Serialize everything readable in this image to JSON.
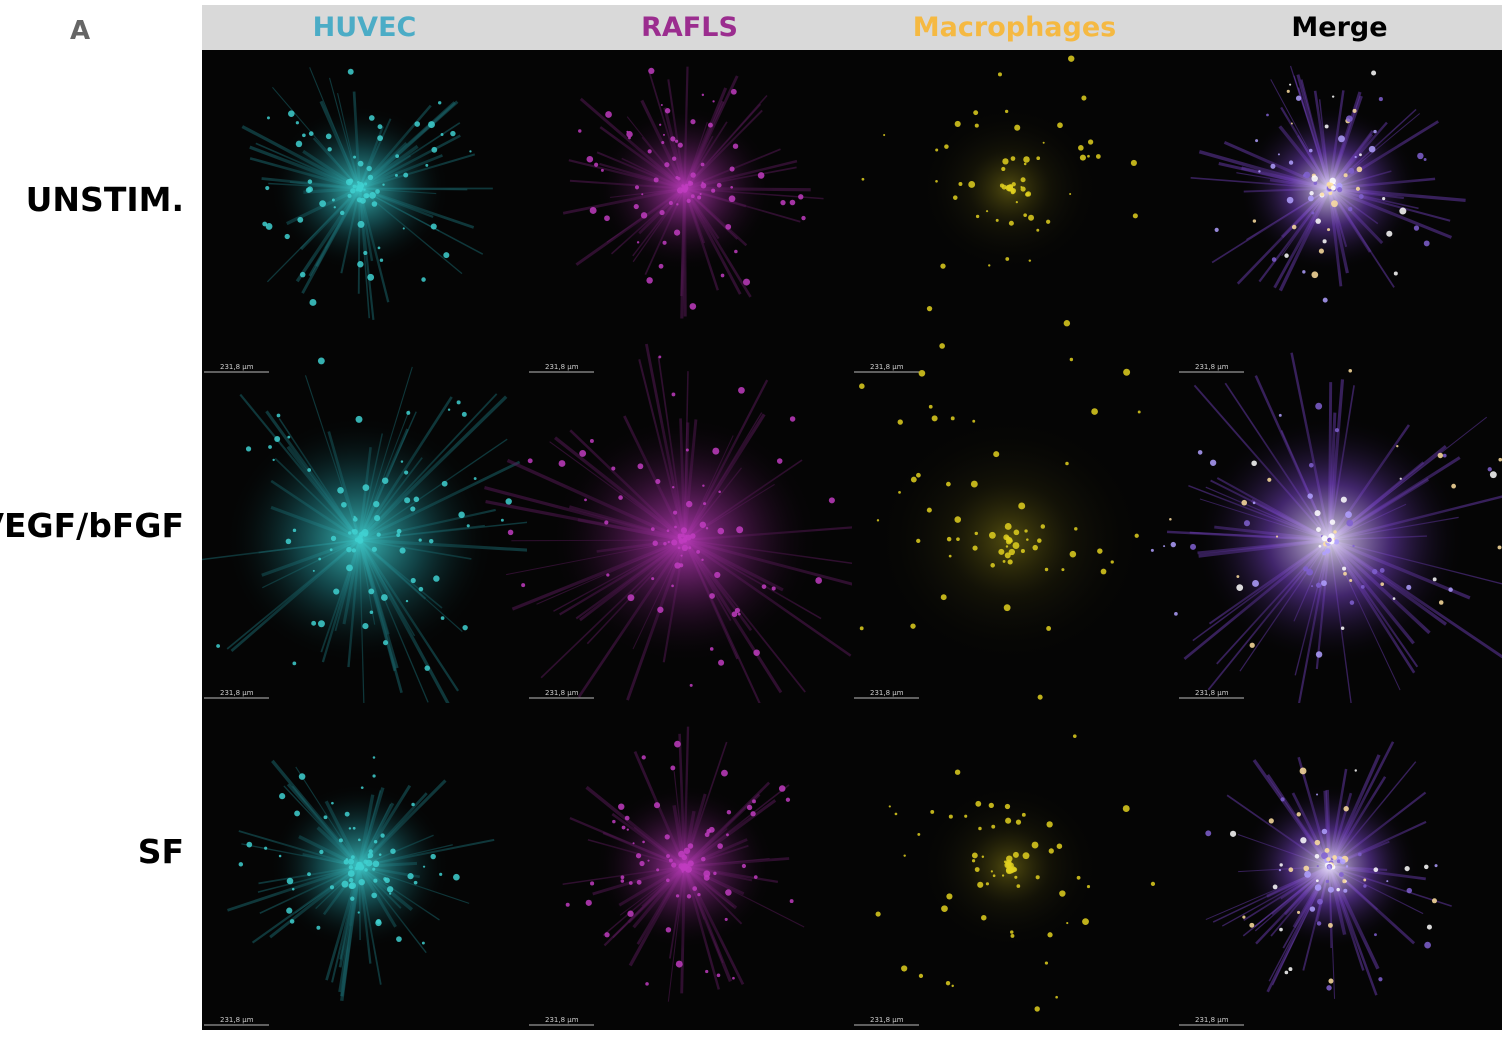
{
  "panel_label": "A",
  "columns": [
    "HUVEC",
    "RAFLS",
    "Macrophages",
    "Merge"
  ],
  "rows": [
    "UNSTIM.",
    "VEGF/bFGF",
    "SF"
  ],
  "scale_bar_label": "231,8 µm"
}
